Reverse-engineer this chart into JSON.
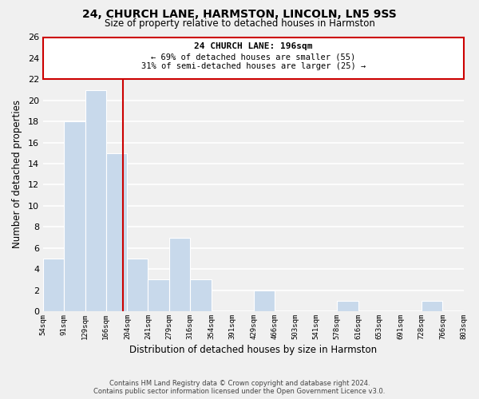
{
  "title": "24, CHURCH LANE, HARMSTON, LINCOLN, LN5 9SS",
  "subtitle": "Size of property relative to detached houses in Harmston",
  "bar_color": "#c8d9eb",
  "bar_edge_color": "white",
  "xlabel": "Distribution of detached houses by size in Harmston",
  "ylabel": "Number of detached properties",
  "bins": [
    54,
    91,
    129,
    166,
    204,
    241,
    279,
    316,
    354,
    391,
    429,
    466,
    503,
    541,
    578,
    616,
    653,
    691,
    728,
    766,
    803
  ],
  "bar_heights": [
    5,
    18,
    21,
    15,
    5,
    3,
    7,
    3,
    0,
    0,
    2,
    0,
    0,
    0,
    1,
    0,
    0,
    0,
    1,
    0
  ],
  "tick_labels": [
    "54sqm",
    "91sqm",
    "129sqm",
    "166sqm",
    "204sqm",
    "241sqm",
    "279sqm",
    "316sqm",
    "354sqm",
    "391sqm",
    "429sqm",
    "466sqm",
    "503sqm",
    "541sqm",
    "578sqm",
    "616sqm",
    "653sqm",
    "691sqm",
    "728sqm",
    "766sqm",
    "803sqm"
  ],
  "ylim": [
    0,
    26
  ],
  "yticks": [
    0,
    2,
    4,
    6,
    8,
    10,
    12,
    14,
    16,
    18,
    20,
    22,
    24,
    26
  ],
  "property_line_x": 196,
  "property_line_color": "#cc0000",
  "annotation_box_color": "#cc0000",
  "annotation_line1": "24 CHURCH LANE: 196sqm",
  "annotation_line2": "← 69% of detached houses are smaller (55)",
  "annotation_line3": "31% of semi-detached houses are larger (25) →",
  "footer_line1": "Contains HM Land Registry data © Crown copyright and database right 2024.",
  "footer_line2": "Contains public sector information licensed under the Open Government Licence v3.0.",
  "background_color": "#f0f0f0",
  "grid_color": "#ffffff",
  "fig_width": 6.0,
  "fig_height": 5.0,
  "dpi": 100
}
